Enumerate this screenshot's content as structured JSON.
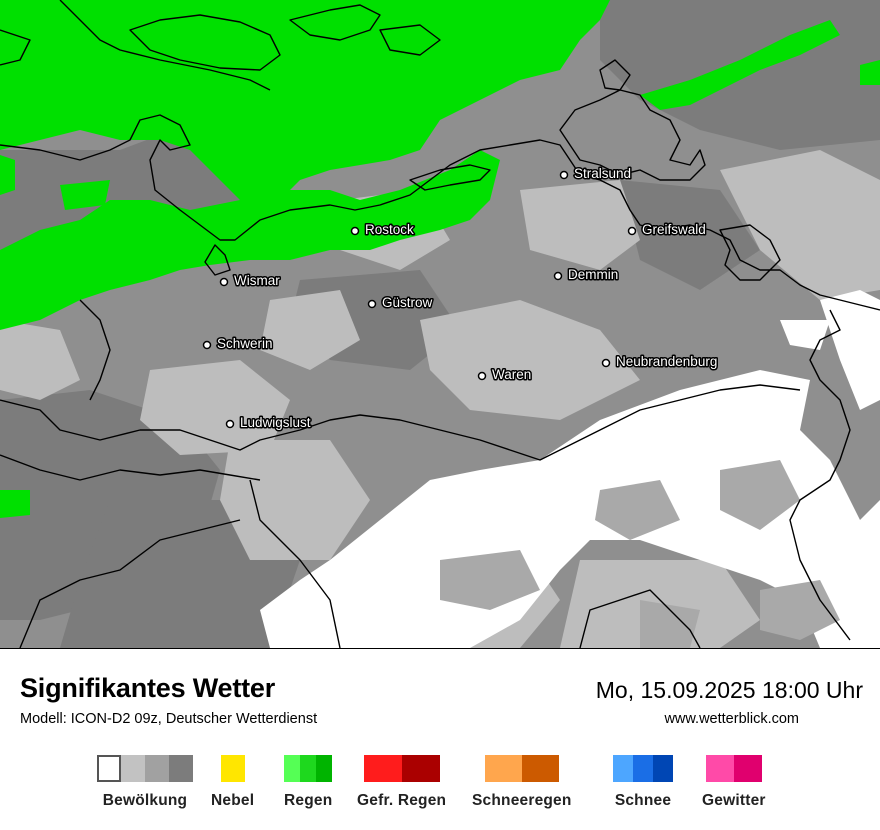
{
  "map": {
    "cities": [
      {
        "name": "Stralsund",
        "key": "stralsund"
      },
      {
        "name": "Rostock",
        "key": "rostock"
      },
      {
        "name": "Greifswald",
        "key": "greifswald"
      },
      {
        "name": "Wismar",
        "key": "wismar"
      },
      {
        "name": "Demmin",
        "key": "demmin"
      },
      {
        "name": "Güstrow",
        "key": "guestrow"
      },
      {
        "name": "Schwerin",
        "key": "schwerin"
      },
      {
        "name": "Neubrandenburg",
        "key": "neubrandenburg"
      },
      {
        "name": "Waren",
        "key": "waren"
      },
      {
        "name": "Ludwigslust",
        "key": "ludwigslust"
      }
    ],
    "colors": {
      "rain": "#00e000",
      "cloud_light": "#c2c2c2",
      "cloud_mid": "#a1a1a1",
      "cloud_dark": "#7c7c7c",
      "clear": "#ffffff",
      "border": "#000000"
    }
  },
  "footer": {
    "title": "Signifikantes Wetter",
    "subtitle": "Modell: ICON-D2 09z, Deutscher Wetterdienst",
    "datetime": "Mo, 15.09.2025 18:00 Uhr",
    "website": "www.wetterblick.com"
  },
  "legend": [
    {
      "label": "Bewölkung",
      "colors": [
        "#ffffff",
        "#c2c2c2",
        "#a1a1a1",
        "#7c7c7c"
      ]
    },
    {
      "label": "Nebel",
      "colors": [
        "#ffe600"
      ]
    },
    {
      "label": "Regen",
      "colors": [
        "#55ff55",
        "#1ed81e",
        "#00b400"
      ]
    },
    {
      "label": "Gefr. Regen",
      "colors": [
        "#ff1c1c",
        "#aa0000"
      ]
    },
    {
      "label": "Schneeregen",
      "colors": [
        "#ffa64d",
        "#cc5a00"
      ]
    },
    {
      "label": "Schnee",
      "colors": [
        "#4da6ff",
        "#1a6ee6",
        "#0046b4"
      ]
    },
    {
      "label": "Gewitter",
      "colors": [
        "#ff4aa8",
        "#e0006e"
      ]
    }
  ]
}
